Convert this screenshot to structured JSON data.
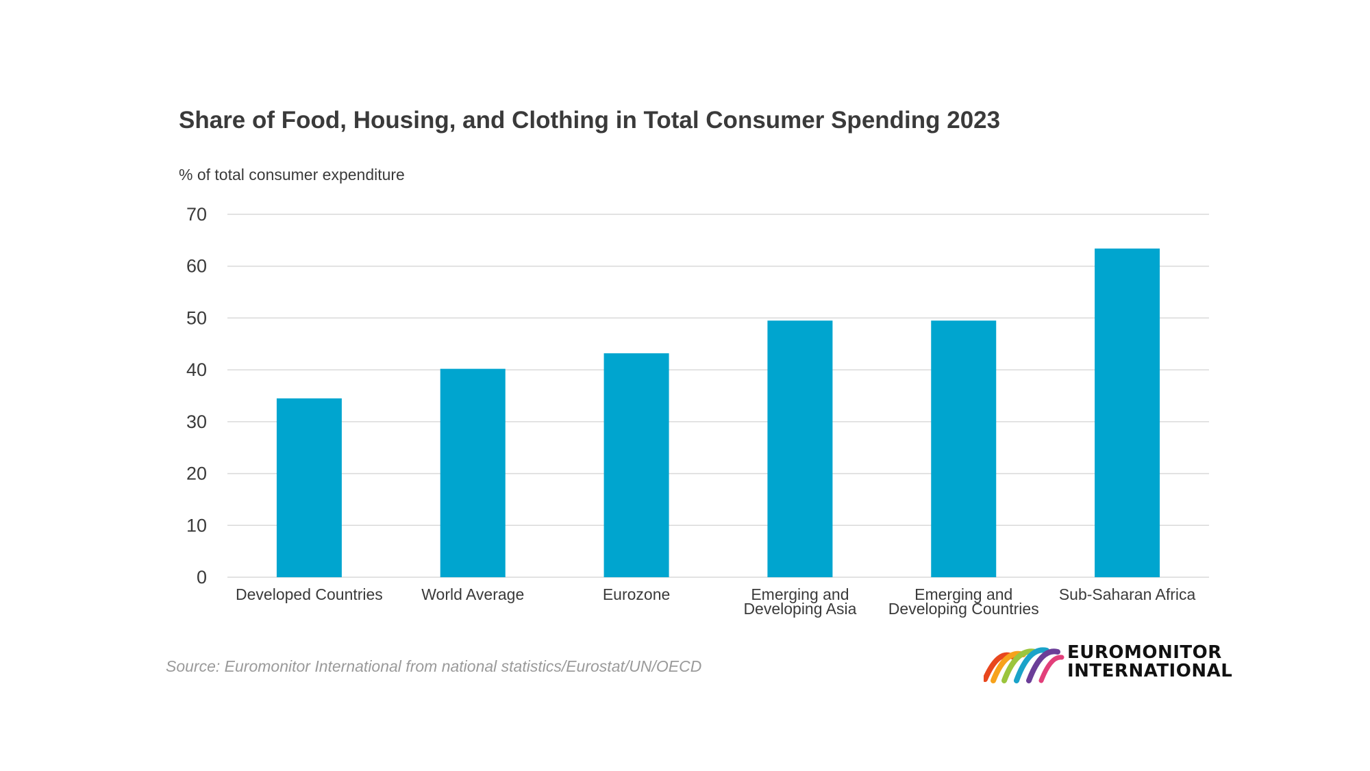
{
  "chart_data": {
    "type": "bar",
    "title": "Share of Food, Housing, and Clothing in Total Consumer Spending 2023",
    "ylabel": "% of total consumer expenditure",
    "xlabel": "",
    "categories": [
      [
        "Developed Countries"
      ],
      [
        "World Average"
      ],
      [
        "Eurozone"
      ],
      [
        "Emerging and",
        "Developing Asia"
      ],
      [
        "Emerging and",
        "Developing Countries"
      ],
      [
        "Sub-Saharan Africa"
      ]
    ],
    "values": [
      34.5,
      40.2,
      43.2,
      49.5,
      49.5,
      63.4
    ],
    "ylim": [
      0,
      70
    ],
    "yticks": [
      0,
      10,
      20,
      30,
      40,
      50,
      60,
      70
    ],
    "grid": true,
    "bar_color": "#00a5cf",
    "grid_color": "#d9d9d9"
  },
  "source": "Source: Euromonitor International from national statistics/Eurostat/UN/OECD",
  "logo": {
    "line1": "EUROMONITOR",
    "line2": "INTERNATIONAL",
    "icon": "euromonitor-rainbow-arc-icon"
  }
}
